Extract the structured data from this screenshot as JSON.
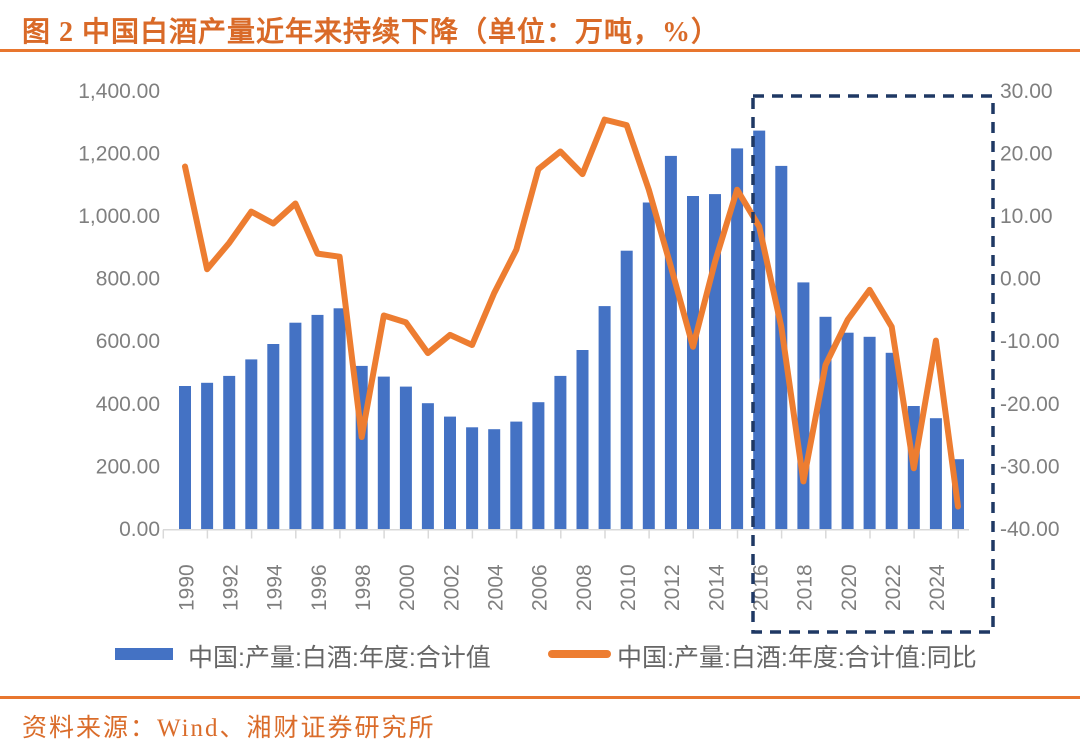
{
  "header": {
    "title": "图 2  中国白酒产量近年来持续下降（单位：万吨，%）"
  },
  "footer": {
    "source": "资料来源：Wind、湘财证券研究所"
  },
  "colors": {
    "bar": "#4472C4",
    "line": "#ED7D31",
    "highlight_box": "#1F3864",
    "axis_text": "#7f7f7f",
    "legend_text": "#666666",
    "axis_line": "#d9d9d9",
    "accent_orange": "#d96a28"
  },
  "chart_data": {
    "type": "bar",
    "subtype": "bar-line-combo",
    "title": "中国白酒产量近年来持续下降（单位：万吨，%）",
    "grid": false,
    "legend_position": "bottom",
    "categories": [
      1990,
      1991,
      1992,
      1993,
      1994,
      1995,
      1996,
      1997,
      1998,
      1999,
      2000,
      2001,
      2002,
      2003,
      2004,
      2005,
      2006,
      2007,
      2008,
      2009,
      2010,
      2011,
      2012,
      2013,
      2014,
      2015,
      2016,
      2017,
      2018,
      2019,
      2020,
      2021,
      2022,
      2023,
      2024,
      2025
    ],
    "series": [
      {
        "name": "中国:产量:白酒:年度:合计值",
        "type": "bar",
        "yaxis": "left",
        "color": "#4472C4",
        "values": [
          457,
          467,
          489,
          542,
          591,
          659,
          684,
          705,
          521,
          487,
          455,
          402,
          359,
          325,
          319,
          343,
          405,
          489,
          572,
          712,
          889,
          1043,
          1192,
          1064,
          1070,
          1216,
          1273,
          1160,
          788,
          678,
          627,
          614,
          563,
          393,
          354,
          223
        ]
      },
      {
        "name": "中国:产量:白酒:年度:合计值:同比",
        "type": "line",
        "yaxis": "right",
        "color": "#ED7D31",
        "values": [
          17.9,
          1.5,
          5.7,
          10.7,
          8.8,
          12.0,
          4.0,
          3.5,
          -25.3,
          -5.9,
          -7.0,
          -11.9,
          -9.0,
          -10.6,
          -2.3,
          4.6,
          17.5,
          20.3,
          16.7,
          25.4,
          24.5,
          14.2,
          1.9,
          -10.9,
          2.7,
          14.2,
          8.3,
          -7.7,
          -32.4,
          -13.8,
          -6.6,
          -1.8,
          -7.7,
          -30.3,
          -9.9,
          -36.4
        ]
      }
    ],
    "left_axis": {
      "range": [
        0,
        1400
      ],
      "step": 200,
      "tick_labels": [
        "1,400.00",
        "1,200.00",
        "1,000.00",
        "800.00",
        "600.00",
        "400.00",
        "200.00",
        "0.00"
      ]
    },
    "right_axis": {
      "range": [
        -40,
        30
      ],
      "step": 10,
      "tick_labels": [
        "30.00",
        "20.00",
        "10.00",
        "0.00",
        "-10.00",
        "-20.00",
        "-30.00",
        "-40.00"
      ]
    },
    "x_axis": {
      "tick_labels": [
        "1990",
        "1992",
        "1994",
        "1996",
        "1998",
        "2000",
        "2002",
        "2004",
        "2006",
        "2008",
        "2010",
        "2012",
        "2014",
        "2016",
        "2018",
        "2020",
        "2022",
        "2024"
      ]
    },
    "highlight_box": {
      "years": "2016–2025",
      "style": "dashed",
      "color": "#1F3864"
    }
  }
}
